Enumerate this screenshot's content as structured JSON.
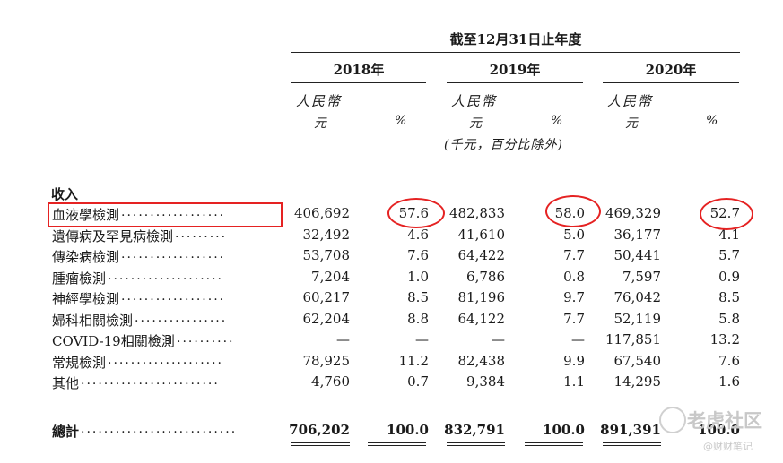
{
  "header": {
    "period": "截至12月31日止年度",
    "years": [
      "2018年",
      "2019年",
      "2020年"
    ],
    "currency": "人民幣",
    "unit_yuan": "元",
    "unit_pct": "%",
    "note": "(千元，百分比除外)"
  },
  "section_title": "收入",
  "rows": [
    {
      "label": "血液學檢測",
      "dots": "..................",
      "v2018": "406,692",
      "p2018": "57.6",
      "v2019": "482,833",
      "p2019": "58.0",
      "v2020": "469,329",
      "p2020": "52.7"
    },
    {
      "label": "遺傳病及罕見病檢測",
      "dots": ".........",
      "v2018": "32,492",
      "p2018": "4.6",
      "v2019": "41,610",
      "p2019": "5.0",
      "v2020": "36,177",
      "p2020": "4.1"
    },
    {
      "label": "傳染病檢測",
      "dots": "..................",
      "v2018": "53,708",
      "p2018": "7.6",
      "v2019": "64,422",
      "p2019": "7.7",
      "v2020": "50,441",
      "p2020": "5.7"
    },
    {
      "label": "腫瘤檢測",
      "dots": "....................",
      "v2018": "7,204",
      "p2018": "1.0",
      "v2019": "6,786",
      "p2019": "0.8",
      "v2020": "7,597",
      "p2020": "0.9"
    },
    {
      "label": "神經學檢測",
      "dots": "..................",
      "v2018": "60,217",
      "p2018": "8.5",
      "v2019": "81,196",
      "p2019": "9.7",
      "v2020": "76,042",
      "p2020": "8.5"
    },
    {
      "label": "婦科相關檢測",
      "dots": "................",
      "v2018": "62,204",
      "p2018": "8.8",
      "v2019": "64,122",
      "p2019": "7.7",
      "v2020": "52,119",
      "p2020": "5.8"
    },
    {
      "label": "COVID-19相關檢測",
      "dots": "..........",
      "v2018": "—",
      "p2018": "—",
      "v2019": "—",
      "p2019": "—",
      "v2020": "117,851",
      "p2020": "13.2"
    },
    {
      "label": "常規檢測",
      "dots": "....................",
      "v2018": "78,925",
      "p2018": "11.2",
      "v2019": "82,438",
      "p2019": "9.9",
      "v2020": "67,540",
      "p2020": "7.6"
    },
    {
      "label": "其他",
      "dots": "........................",
      "v2018": "4,760",
      "p2018": "0.7",
      "v2019": "9,384",
      "p2019": "1.1",
      "v2020": "14,295",
      "p2020": "1.6"
    }
  ],
  "total": {
    "label": "總計",
    "dots": "...........................",
    "v2018": "706,202",
    "p2018": "100.0",
    "v2019": "832,791",
    "p2019": "100.0",
    "v2020": "891,391",
    "p2020": "100.0"
  },
  "watermark": {
    "brand": "老虎社区",
    "sub": "@财财笔记"
  }
}
